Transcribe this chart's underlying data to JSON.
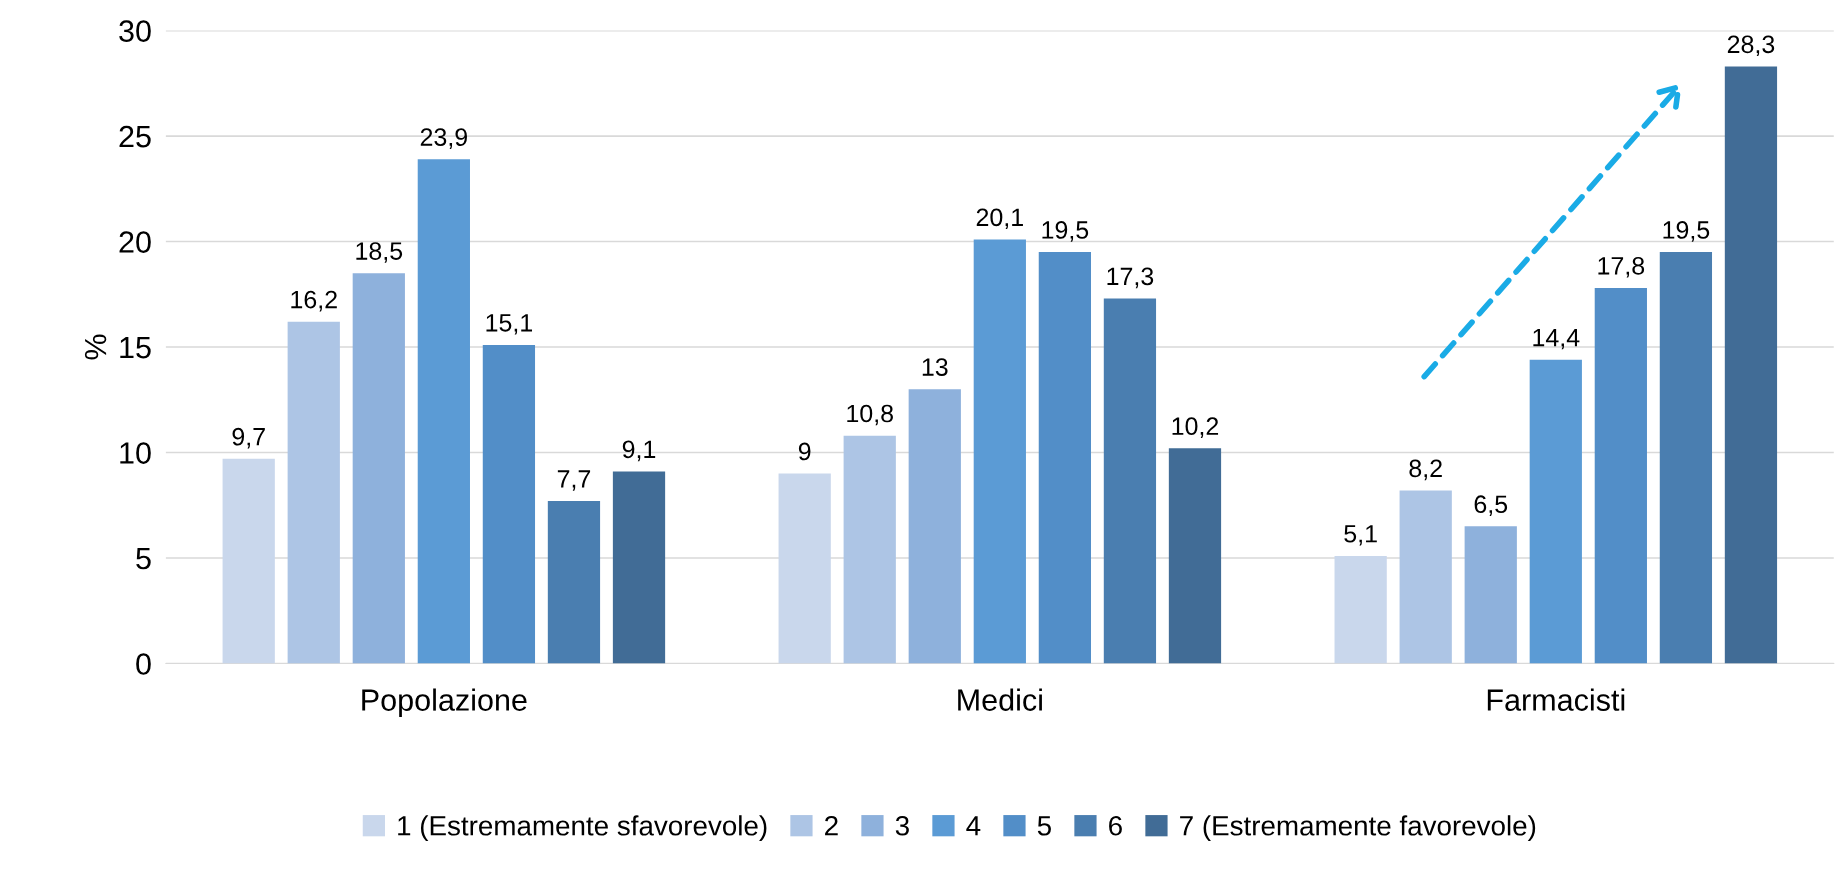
{
  "chart_data": {
    "type": "bar",
    "ylabel": "%",
    "categories": [
      "Popolazione",
      "Medici",
      "Farmacisti"
    ],
    "series": [
      {
        "name": "1 (Estremamente sfavorevole)",
        "color": "#c9d7ec",
        "values": [
          9.7,
          9,
          5.1
        ],
        "value_labels": [
          "9,7",
          "9",
          "5,1"
        ]
      },
      {
        "name": "2",
        "color": "#adc5e5",
        "values": [
          16.2,
          10.8,
          8.2
        ],
        "value_labels": [
          "16,2",
          "10,8",
          "8,2"
        ]
      },
      {
        "name": "3",
        "color": "#8eb1dc",
        "values": [
          18.5,
          13,
          6.5
        ],
        "value_labels": [
          "18,5",
          "13",
          "6,5"
        ]
      },
      {
        "name": "4",
        "color": "#5b9bd5",
        "values": [
          23.9,
          20.1,
          14.4
        ],
        "value_labels": [
          "23,9",
          "20,1",
          "14,4"
        ]
      },
      {
        "name": "5",
        "color": "#528ec8",
        "values": [
          15.1,
          19.5,
          17.8
        ],
        "value_labels": [
          "15,1",
          "19,5",
          "17,8"
        ]
      },
      {
        "name": "6",
        "color": "#4a7eb0",
        "values": [
          7.7,
          17.3,
          19.5
        ],
        "value_labels": [
          "7,7",
          "17,3",
          "19,5"
        ]
      },
      {
        "name": "7 (Estremamente favorevole)",
        "color": "#416c96",
        "values": [
          9.1,
          10.2,
          28.3
        ],
        "value_labels": [
          "9,1",
          "10,2",
          "28,3"
        ]
      }
    ],
    "ylim": [
      0,
      30
    ],
    "yticks": [
      0,
      5,
      10,
      15,
      20,
      25,
      30
    ],
    "grid": "y",
    "legend": "bottom"
  }
}
